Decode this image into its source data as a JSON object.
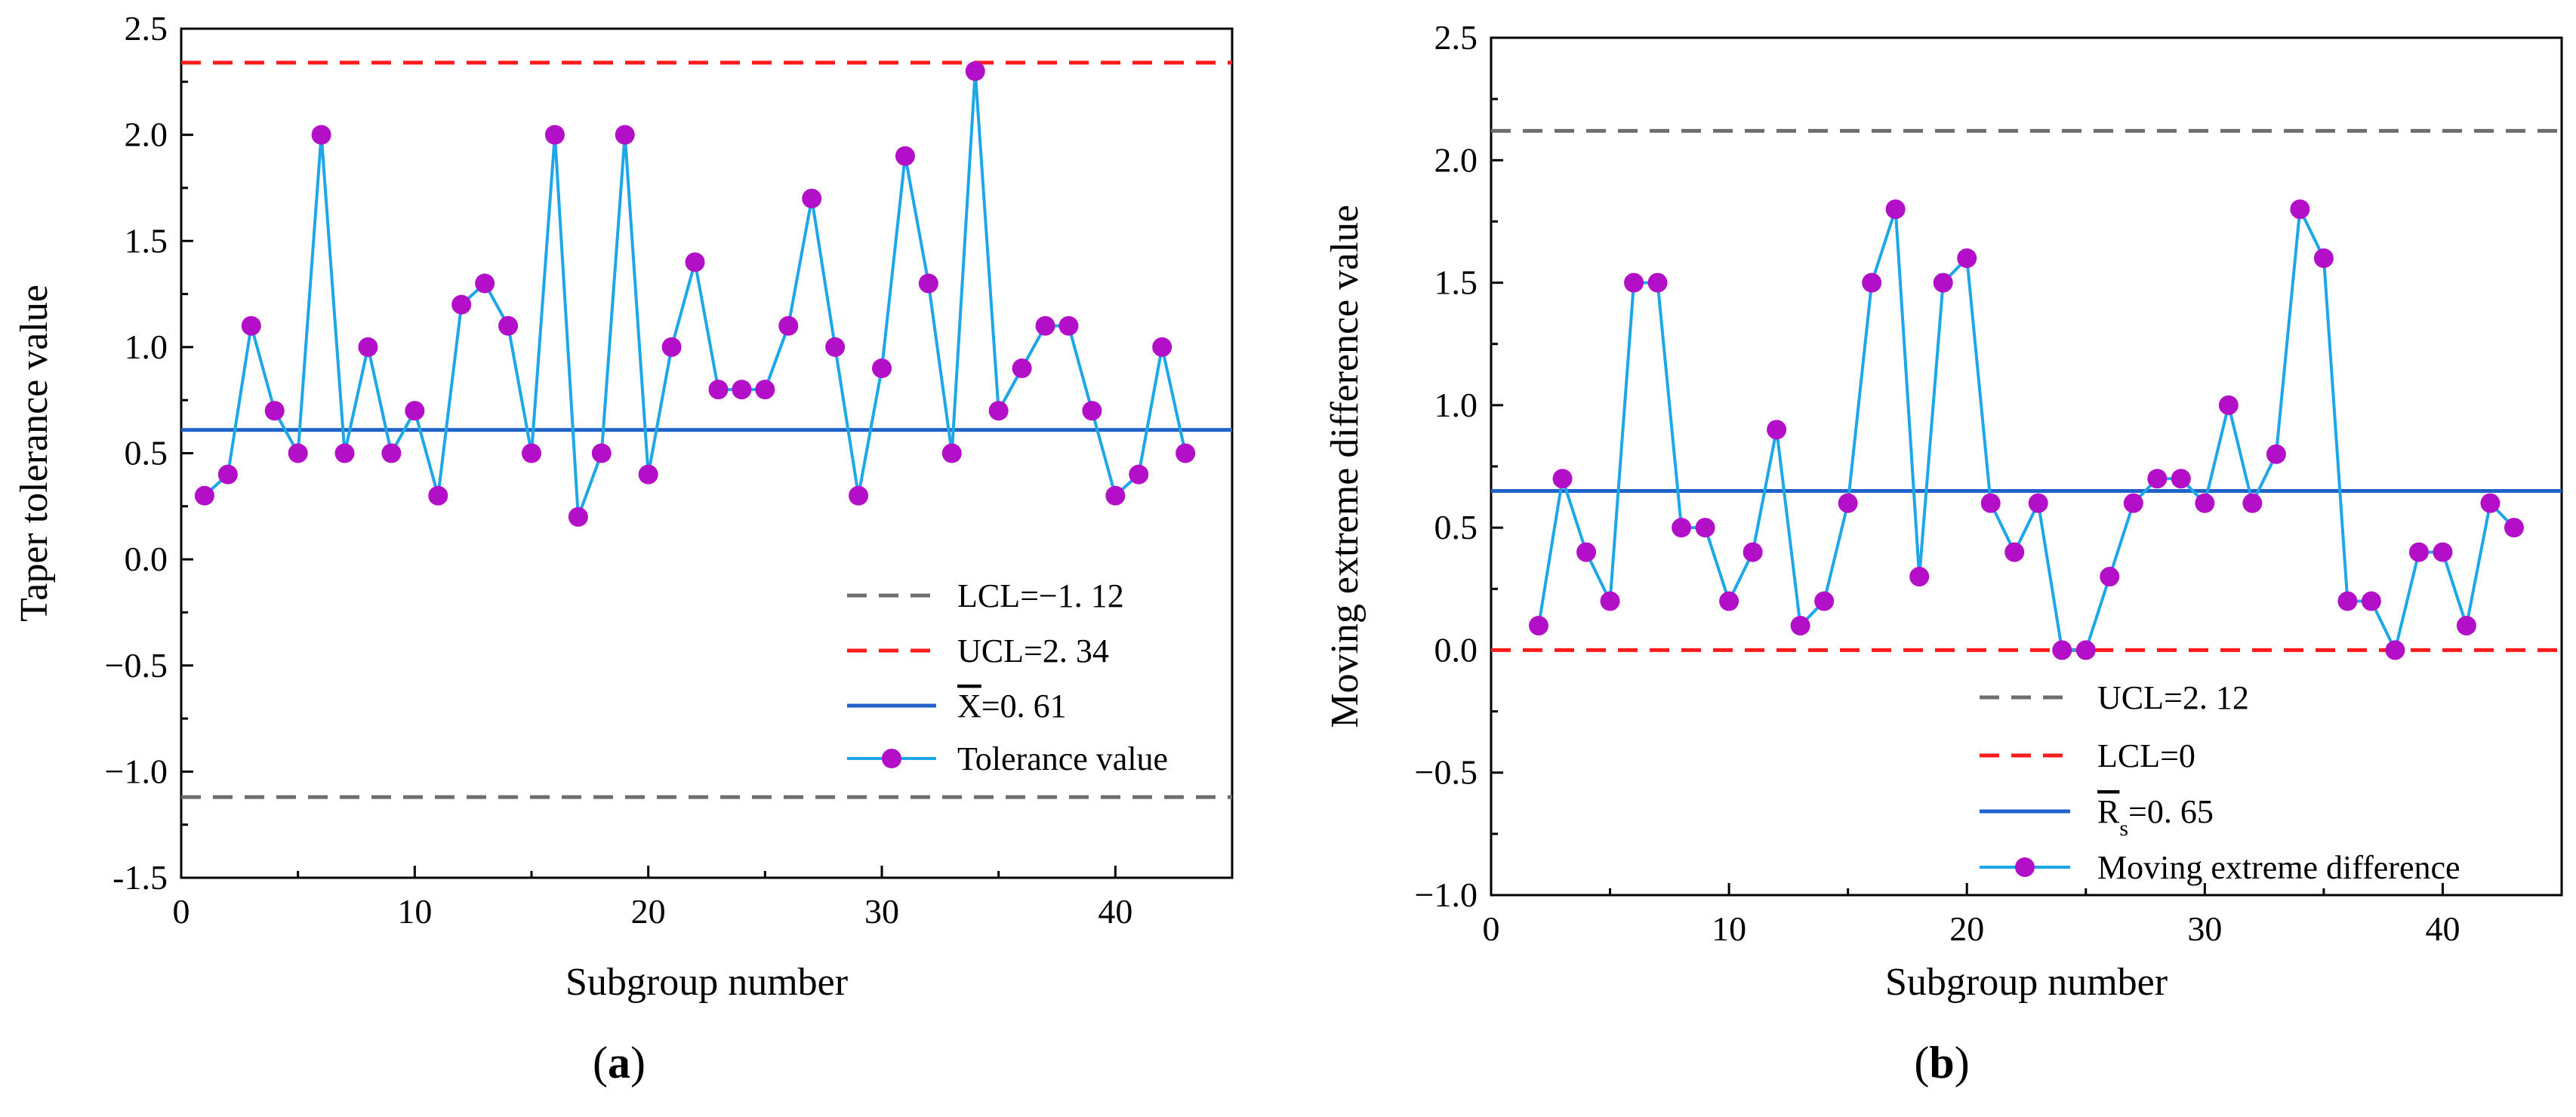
{
  "chart_data": [
    {
      "type": "line",
      "panel_label": "(a)",
      "panel_letter": "a",
      "xlabel": "Subgroup number",
      "ylabel": "Taper tolerance value",
      "xlim": [
        0,
        45
      ],
      "ylim": [
        -1.5,
        2.5
      ],
      "xticks": [
        0,
        10,
        20,
        30,
        40
      ],
      "xtick_labels": [
        "0",
        "10",
        "20",
        "30",
        "40"
      ],
      "yticks": [
        -1.5,
        -1.0,
        -0.5,
        0.0,
        0.5,
        1.0,
        1.5,
        2.0,
        2.5
      ],
      "ytick_labels": [
        "-1.5",
        "−1.0",
        "−0.5",
        "0.0",
        "0.5",
        "1.0",
        "1.5",
        "2.0",
        "2.5"
      ],
      "legend_position": "lower-right",
      "reference_lines": [
        {
          "name": "LCL",
          "label": "LCL=−1. 12",
          "value": -1.12,
          "style": "dashed",
          "color": "#6e6e6e"
        },
        {
          "name": "UCL",
          "label": "UCL=2. 34",
          "value": 2.34,
          "style": "dashed",
          "color": "#ff1a1a"
        },
        {
          "name": "mean",
          "label_prefix": "X",
          "label_suffix": "=0. 61",
          "value": 0.61,
          "style": "solid",
          "color": "#1f63c9"
        }
      ],
      "series": [
        {
          "name": "Tolerance value",
          "line_color": "#1ea7e8",
          "marker_color": "#b30fc8",
          "x": [
            1,
            2,
            3,
            4,
            5,
            6,
            7,
            8,
            9,
            10,
            11,
            12,
            13,
            14,
            15,
            16,
            17,
            18,
            19,
            20,
            21,
            22,
            23,
            24,
            25,
            26,
            27,
            28,
            29,
            30,
            31,
            32,
            33,
            34,
            35,
            36,
            37,
            38,
            39,
            40,
            41,
            42,
            43
          ],
          "values": [
            0.3,
            0.4,
            1.1,
            0.7,
            0.5,
            2.0,
            0.5,
            1.0,
            0.5,
            0.7,
            0.3,
            1.2,
            1.3,
            1.1,
            0.5,
            2.0,
            0.2,
            0.5,
            2.0,
            0.4,
            1.0,
            1.4,
            0.8,
            0.8,
            0.8,
            1.1,
            1.7,
            1.0,
            0.3,
            0.9,
            1.9,
            1.3,
            0.5,
            2.3,
            0.7,
            0.9,
            1.1,
            1.1,
            0.7,
            0.3,
            0.4,
            1.0,
            0.5
          ]
        }
      ]
    },
    {
      "type": "line",
      "panel_label": "(b)",
      "panel_letter": "b",
      "xlabel": "Subgroup number",
      "ylabel": "Moving extreme difference value",
      "xlim": [
        0,
        45
      ],
      "ylim": [
        -1.0,
        2.5
      ],
      "xticks": [
        0,
        10,
        20,
        30,
        40
      ],
      "xtick_labels": [
        "0",
        "10",
        "20",
        "30",
        "40"
      ],
      "yticks": [
        -1.0,
        -0.5,
        0.0,
        0.5,
        1.0,
        1.5,
        2.0,
        2.5
      ],
      "ytick_labels": [
        "−1.0",
        "−0.5",
        "0.0",
        "0.5",
        "1.0",
        "1.5",
        "2.0",
        "2.5"
      ],
      "legend_position": "lower-right",
      "reference_lines": [
        {
          "name": "UCL",
          "label": "UCL=2. 12",
          "value": 2.12,
          "style": "dashed",
          "color": "#6e6e6e"
        },
        {
          "name": "LCL",
          "label": "LCL=0",
          "value": 0.0,
          "style": "dashed",
          "color": "#ff1a1a"
        },
        {
          "name": "mean",
          "label_prefix": "R",
          "label_sub": "s",
          "label_suffix": "=0. 65",
          "value": 0.65,
          "style": "solid",
          "color": "#1f63c9"
        }
      ],
      "series": [
        {
          "name": "Moving extreme difference",
          "line_color": "#1ea7e8",
          "marker_color": "#b30fc8",
          "x": [
            2,
            3,
            4,
            5,
            6,
            7,
            8,
            9,
            10,
            11,
            12,
            13,
            14,
            15,
            16,
            17,
            18,
            19,
            20,
            21,
            22,
            23,
            24,
            25,
            26,
            27,
            28,
            29,
            30,
            31,
            32,
            33,
            34,
            35,
            36,
            37,
            38,
            39,
            40,
            41,
            42,
            43
          ],
          "values": [
            0.1,
            0.7,
            0.4,
            0.2,
            1.5,
            1.5,
            0.5,
            0.5,
            0.2,
            0.4,
            0.9,
            0.1,
            0.2,
            0.6,
            1.5,
            1.8,
            0.3,
            1.5,
            1.6,
            0.6,
            0.4,
            0.6,
            0.0,
            0.0,
            0.3,
            0.6,
            0.7,
            0.7,
            0.6,
            1.0,
            0.6,
            0.8,
            1.8,
            1.6,
            0.2,
            0.2,
            0.0,
            0.4,
            0.4,
            0.1,
            0.6,
            0.5
          ]
        }
      ]
    }
  ]
}
